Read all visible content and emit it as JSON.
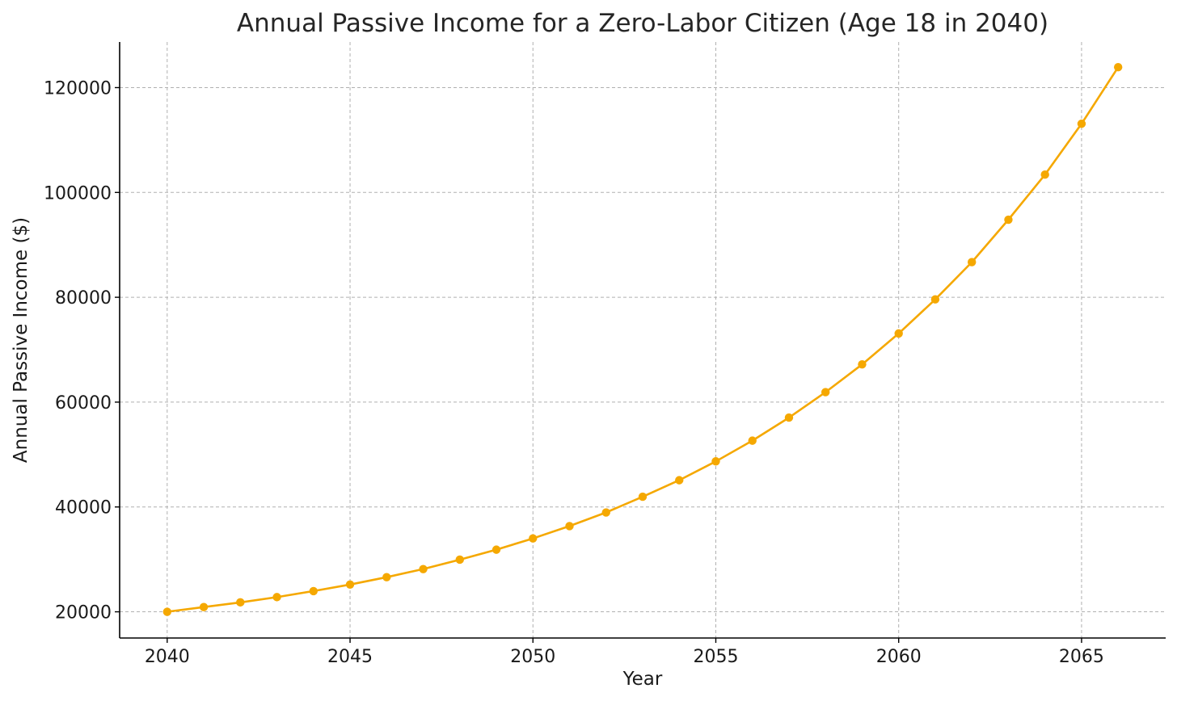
{
  "chart_data": {
    "type": "line",
    "title": "Annual Passive Income for a Zero-Labor Citizen (Age 18 in 2040)",
    "xlabel": "Year",
    "ylabel": "Annual Passive Income ($)",
    "x": [
      2040,
      2041,
      2042,
      2043,
      2044,
      2045,
      2046,
      2047,
      2048,
      2049,
      2050,
      2051,
      2052,
      2053,
      2054,
      2055,
      2056,
      2057,
      2058,
      2059,
      2060,
      2061,
      2062,
      2063,
      2064,
      2065,
      2066
    ],
    "series": [
      {
        "values": [
          20000,
          20900,
          21800,
          22800,
          23950,
          25200,
          26600,
          28150,
          29950,
          31850,
          34000,
          36350,
          38950,
          41950,
          45100,
          48700,
          52650,
          57050,
          61900,
          67200,
          73100,
          79600,
          86700,
          94800,
          103400,
          113100,
          123900
        ],
        "color": "#f5a800",
        "marker": "circle"
      }
    ],
    "xlim": [
      2038.7,
      2067.3
    ],
    "ylim": [
      15000,
      128700
    ],
    "xticks": [
      2040,
      2045,
      2050,
      2055,
      2060,
      2065
    ],
    "yticks": [
      20000,
      40000,
      60000,
      80000,
      100000,
      120000
    ],
    "grid": true
  }
}
